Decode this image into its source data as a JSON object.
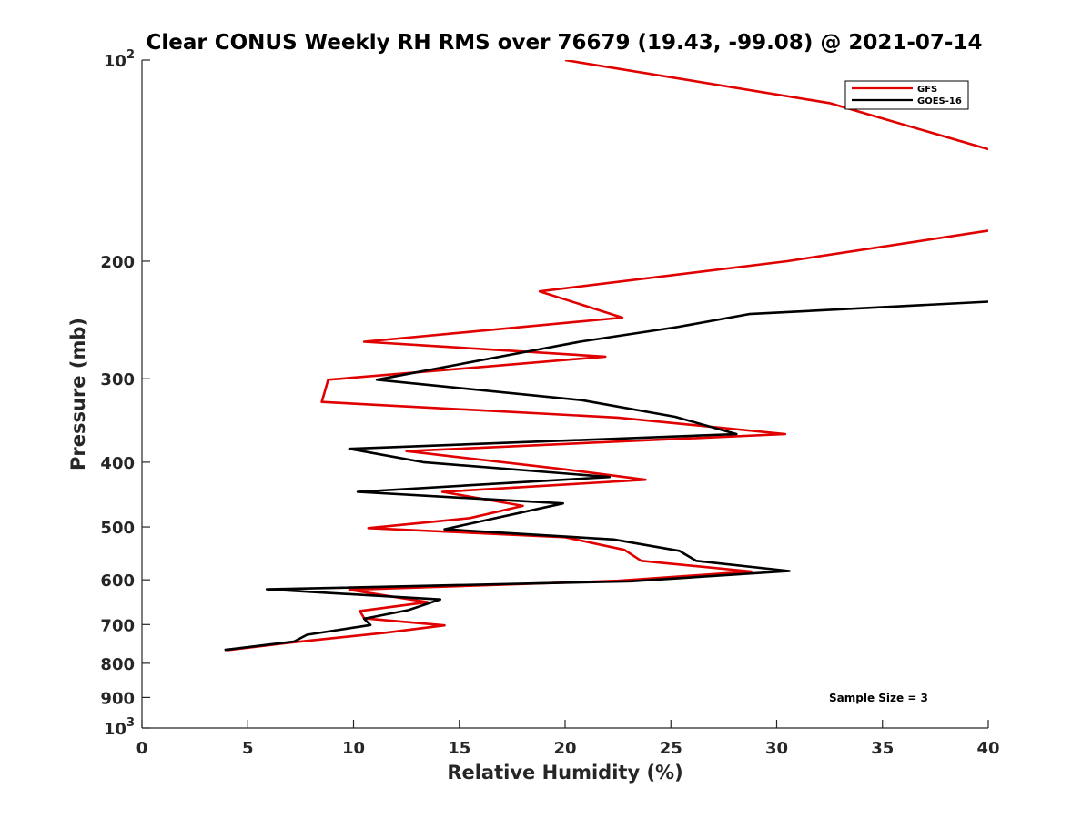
{
  "chart_data": {
    "type": "line",
    "title": "Clear CONUS Weekly RH RMS over 76679 (19.43, -99.08) @ 2021-07-14",
    "xlabel": "Relative Humidity (%)",
    "ylabel": "Pressure (mb)",
    "xlim": [
      0,
      40
    ],
    "ylim": [
      100,
      1000
    ],
    "y_scale": "log",
    "y_reversed": true,
    "grid": false,
    "legend_position": "top-right",
    "annotation": "Sample Size = 3",
    "x_ticks": [
      "0",
      "5",
      "10",
      "15",
      "20",
      "25",
      "30",
      "35",
      "40"
    ],
    "y_ticks": [
      {
        "value": 100,
        "base": "10",
        "exp": "2"
      },
      {
        "value": 200,
        "label": "200"
      },
      {
        "value": 300,
        "label": "300"
      },
      {
        "value": 400,
        "label": "400"
      },
      {
        "value": 500,
        "label": "500"
      },
      {
        "value": 600,
        "label": "600"
      },
      {
        "value": 700,
        "label": "700"
      },
      {
        "value": 800,
        "label": "800"
      },
      {
        "value": 900,
        "label": "900"
      },
      {
        "value": 1000,
        "base": "10",
        "exp": "3"
      }
    ],
    "series": [
      {
        "name": "GFS",
        "color": "#e00000",
        "segments": [
          [
            [
              20,
              100
            ],
            [
              32.5,
              116
            ],
            [
              40,
              136
            ]
          ],
          [
            [
              40,
              180
            ],
            [
              30.5,
              200
            ],
            [
              18.8,
              222
            ],
            [
              22.7,
              243
            ],
            [
              10.5,
              264
            ],
            [
              21.9,
              278
            ],
            [
              8.8,
              301
            ],
            [
              8.5,
              325
            ],
            [
              22.5,
              343
            ],
            [
              30.4,
              363
            ],
            [
              12.5,
              385
            ],
            [
              20,
              410
            ],
            [
              23.8,
              425
            ],
            [
              14.2,
              443
            ],
            [
              18,
              465
            ],
            [
              15.5,
              485
            ],
            [
              10.7,
              502
            ],
            [
              20,
              518
            ],
            [
              22.8,
              541
            ],
            [
              23.6,
              562
            ],
            [
              28.8,
              583
            ],
            [
              22.5,
              602
            ],
            [
              9.8,
              621
            ],
            [
              13.5,
              648
            ],
            [
              10.3,
              668
            ],
            [
              10.5,
              685
            ],
            [
              14.3,
              702
            ],
            [
              11.5,
              720
            ],
            [
              7,
              745
            ],
            [
              4,
              765
            ]
          ]
        ]
      },
      {
        "name": "GOES-16",
        "color": "#000000",
        "segments": [
          [
            [
              40,
              230
            ],
            [
              28.7,
              240
            ],
            [
              25.3,
              251
            ],
            [
              20.7,
              264
            ],
            [
              11.1,
              301
            ],
            [
              20.8,
              323
            ],
            [
              25.2,
              342
            ],
            [
              28.1,
              363
            ],
            [
              9.8,
              382
            ],
            [
              13.3,
              400
            ],
            [
              22.1,
              421
            ],
            [
              10.2,
              443
            ],
            [
              19.9,
              461
            ],
            [
              14.3,
              504
            ],
            [
              22.3,
              522
            ],
            [
              25.4,
              543
            ],
            [
              26.2,
              562
            ],
            [
              30.6,
              582
            ],
            [
              23.1,
              603
            ],
            [
              5.9,
              620
            ],
            [
              14.1,
              642
            ],
            [
              12.6,
              666
            ],
            [
              10.5,
              686
            ],
            [
              10.8,
              701
            ],
            [
              7.8,
              725
            ],
            [
              7.2,
              742
            ],
            [
              3.9,
              764
            ]
          ]
        ]
      }
    ]
  }
}
